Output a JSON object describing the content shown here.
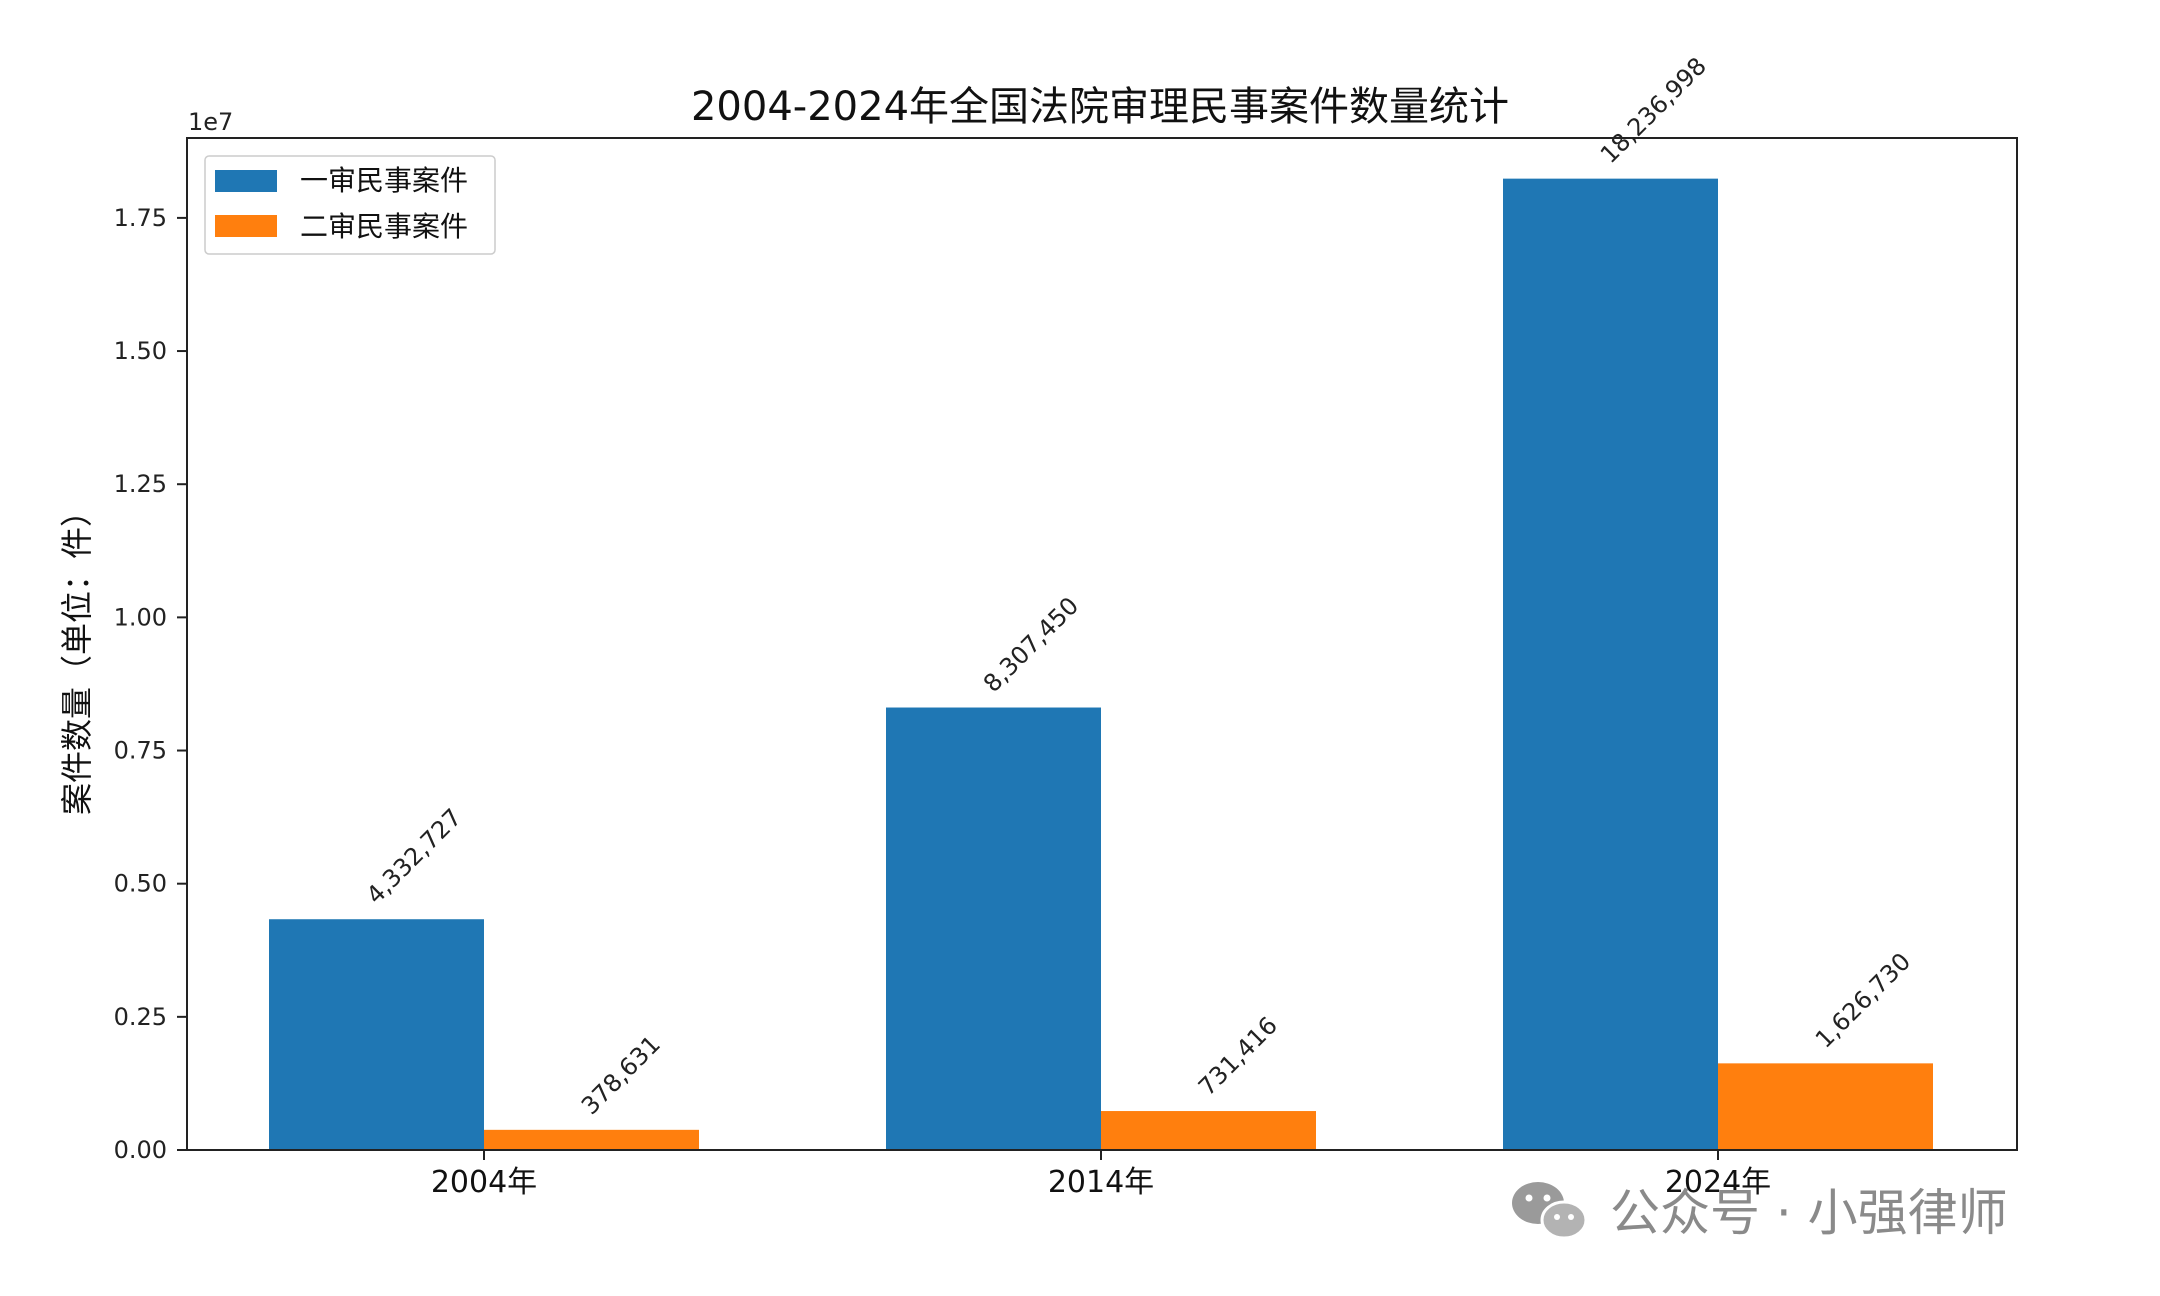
{
  "chart_data": {
    "type": "bar",
    "title": "2004-2024年全国法院审理民事案件数量统计",
    "ylabel": "案件数量（单位：件）",
    "y_offset_label": "1e7",
    "y_scale": 10000000,
    "ylim": [
      0,
      19000000
    ],
    "yticks": [
      0,
      2500000,
      5000000,
      7500000,
      10000000,
      12500000,
      15000000,
      17500000
    ],
    "ytick_labels": [
      "0.00",
      "0.25",
      "0.50",
      "0.75",
      "1.00",
      "1.25",
      "1.50",
      "1.75"
    ],
    "categories": [
      "2004年",
      "2014年",
      "2024年"
    ],
    "series": [
      {
        "name": "一审民事案件",
        "color": "#1f77b4",
        "values": [
          4332727,
          8307450,
          18236998
        ],
        "labels": [
          "4,332,727",
          "8,307,450",
          "18,236,998"
        ]
      },
      {
        "name": "二审民事案件",
        "color": "#ff7f0e",
        "values": [
          378631,
          731416,
          1626730
        ],
        "labels": [
          "378,631",
          "731,416",
          "1,626,730"
        ]
      }
    ],
    "legend_position": "top-left",
    "grid": false
  },
  "watermark": {
    "text": "公众号 · 小强律师",
    "icon": "wechat-icon"
  }
}
